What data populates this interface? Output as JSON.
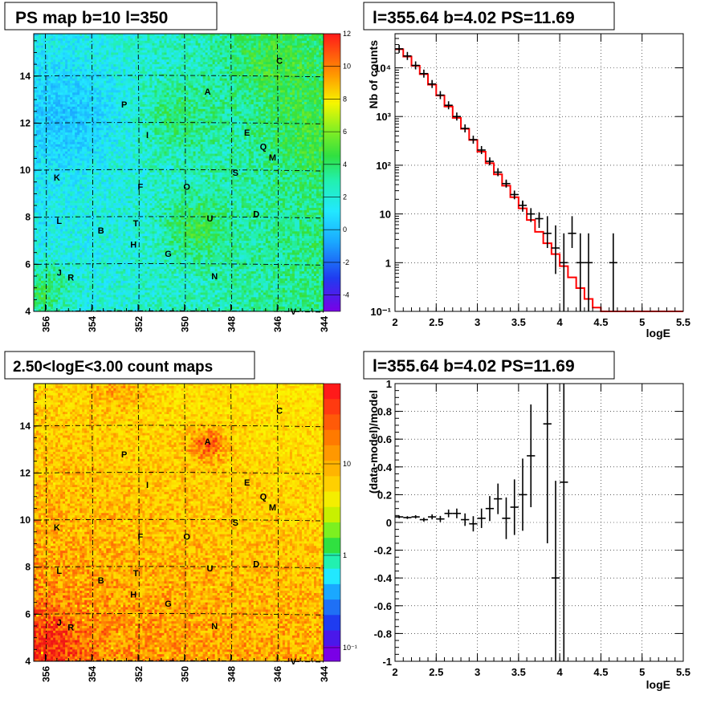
{
  "panels": {
    "tl": {
      "title": "PS map b=10 l=350"
    },
    "bl": {
      "title": "2.50<logE<3.00 count maps"
    },
    "tr": {
      "title": "l=355.64 b=4.02 PS=11.69"
    },
    "br": {
      "title": "l=355.64 b=4.02 PS=11.69"
    }
  },
  "chart_data": [
    {
      "type": "heatmap",
      "title": "PS map b=10 l=350",
      "x_ticks": [
        "356",
        "354",
        "352",
        "350",
        "348",
        "346",
        "344"
      ],
      "y_ticks": [
        "4",
        "6",
        "8",
        "10",
        "12",
        "14"
      ],
      "xlim": [
        356.5,
        344
      ],
      "ylim": [
        4,
        15.8
      ],
      "colorbar": {
        "ticks": [
          "12",
          "10",
          "8",
          "6",
          "4",
          "2",
          "0",
          "-2",
          "-4"
        ],
        "range": [
          -5,
          12
        ]
      },
      "labels": [
        {
          "text": "C",
          "l": 345.9,
          "b": 14.65
        },
        {
          "text": "A",
          "l": 349.0,
          "b": 13.35
        },
        {
          "text": "P",
          "l": 352.6,
          "b": 12.8
        },
        {
          "text": "I",
          "l": 351.6,
          "b": 11.5
        },
        {
          "text": "E",
          "l": 347.3,
          "b": 11.6
        },
        {
          "text": "Q",
          "l": 346.6,
          "b": 11.0
        },
        {
          "text": "M",
          "l": 346.2,
          "b": 10.55
        },
        {
          "text": "K",
          "l": 355.5,
          "b": 9.7
        },
        {
          "text": "S",
          "l": 347.8,
          "b": 9.9
        },
        {
          "text": "F",
          "l": 351.9,
          "b": 9.3
        },
        {
          "text": "O",
          "l": 349.9,
          "b": 9.3
        },
        {
          "text": "L",
          "l": 355.4,
          "b": 7.85
        },
        {
          "text": "D",
          "l": 346.9,
          "b": 8.15
        },
        {
          "text": "U",
          "l": 348.9,
          "b": 7.95
        },
        {
          "text": "T",
          "l": 352.1,
          "b": 7.75
        },
        {
          "text": "B",
          "l": 353.6,
          "b": 7.45
        },
        {
          "text": "H",
          "l": 352.2,
          "b": 6.85
        },
        {
          "text": "G",
          "l": 350.7,
          "b": 6.45
        },
        {
          "text": "J",
          "l": 355.4,
          "b": 5.65
        },
        {
          "text": "R",
          "l": 354.9,
          "b": 5.45
        },
        {
          "text": "N",
          "l": 348.7,
          "b": 5.5
        },
        {
          "text": "V",
          "l": 345.3,
          "b": 4.0
        }
      ]
    },
    {
      "type": "heatmap",
      "title": "2.50<logE<3.00 count maps",
      "x_ticks": [
        "356",
        "354",
        "352",
        "350",
        "348",
        "346",
        "344"
      ],
      "y_ticks": [
        "4",
        "6",
        "8",
        "10",
        "12",
        "14"
      ],
      "xlim": [
        356.5,
        344
      ],
      "ylim": [
        4,
        15.8
      ],
      "colorbar": {
        "scale": "log",
        "ticks": [
          "10",
          "1",
          "10⁻¹"
        ]
      }
    },
    {
      "type": "line",
      "title": "l=355.64 b=4.02 PS=11.69",
      "xlabel": "logE",
      "ylabel": "Nb of counts",
      "xlim": [
        2,
        5.5
      ],
      "ylim_log10": [
        -1,
        4.7
      ],
      "x_ticks": [
        "2",
        "2.5",
        "3",
        "3.5",
        "4",
        "4.5",
        "5",
        "5.5"
      ],
      "y_ticks": [
        {
          "v": 4,
          "t": "10⁴"
        },
        {
          "v": 3,
          "t": "10³"
        },
        {
          "v": 2,
          "t": "10²"
        },
        {
          "v": 1,
          "t": "10"
        },
        {
          "v": 0,
          "t": "1"
        },
        {
          "v": -1,
          "t": "10⁻¹"
        }
      ],
      "grid": true,
      "model_color": "#ff0000",
      "model": [
        [
          2.0,
          2.1,
          24000
        ],
        [
          2.1,
          2.2,
          17000
        ],
        [
          2.2,
          2.3,
          11000
        ],
        [
          2.3,
          2.4,
          7400
        ],
        [
          2.4,
          2.5,
          4500
        ],
        [
          2.5,
          2.6,
          2700
        ],
        [
          2.6,
          2.7,
          1600
        ],
        [
          2.7,
          2.8,
          940
        ],
        [
          2.8,
          2.9,
          560
        ],
        [
          2.9,
          3.0,
          330
        ],
        [
          3.0,
          3.1,
          190
        ],
        [
          3.1,
          3.2,
          110
        ],
        [
          3.2,
          3.3,
          65
        ],
        [
          3.3,
          3.4,
          38
        ],
        [
          3.4,
          3.5,
          22
        ],
        [
          3.5,
          3.6,
          13
        ],
        [
          3.6,
          3.7,
          7.5
        ],
        [
          3.7,
          3.8,
          4.3
        ],
        [
          3.8,
          3.9,
          2.5
        ],
        [
          3.9,
          4.0,
          1.5
        ],
        [
          4.0,
          4.1,
          0.85
        ],
        [
          4.1,
          4.2,
          0.5
        ],
        [
          4.2,
          4.3,
          0.3
        ],
        [
          4.3,
          4.4,
          0.18
        ],
        [
          4.4,
          4.5,
          0.12
        ],
        [
          4.5,
          4.6,
          0.1
        ],
        [
          4.6,
          5.5,
          0.1
        ]
      ],
      "data": [
        [
          2.05,
          24500
        ],
        [
          2.15,
          17500
        ],
        [
          2.25,
          11200
        ],
        [
          2.35,
          7600
        ],
        [
          2.45,
          4650
        ],
        [
          2.55,
          2750
        ],
        [
          2.65,
          1700
        ],
        [
          2.75,
          1000
        ],
        [
          2.85,
          570
        ],
        [
          2.95,
          335
        ],
        [
          3.05,
          205
        ],
        [
          3.15,
          120
        ],
        [
          3.25,
          72
        ],
        [
          3.35,
          42
        ],
        [
          3.45,
          25
        ],
        [
          3.55,
          15
        ],
        [
          3.65,
          10
        ],
        [
          3.75,
          8
        ],
        [
          3.85,
          4
        ],
        [
          3.95,
          2
        ],
        [
          4.05,
          1
        ],
        [
          4.15,
          4
        ],
        [
          4.25,
          1
        ],
        [
          4.35,
          1
        ],
        [
          4.65,
          1
        ]
      ]
    },
    {
      "type": "scatter",
      "title": "l=355.64 b=4.02 PS=11.69",
      "xlabel": "logE",
      "ylabel": "(data-model)/model",
      "xlim": [
        2,
        5.5
      ],
      "ylim": [
        -1,
        1
      ],
      "x_ticks": [
        "2",
        "2.5",
        "3",
        "3.5",
        "4",
        "4.5",
        "5",
        "5.5"
      ],
      "y_ticks": [
        "1",
        "0.8",
        "0.6",
        "0.4",
        "0.2",
        "0",
        "-0.2",
        "-0.4",
        "-0.6",
        "-0.8",
        "-1"
      ],
      "grid": true,
      "points": [
        [
          2.05,
          0.04,
          0.01
        ],
        [
          2.15,
          0.035,
          0.01
        ],
        [
          2.25,
          0.04,
          0.012
        ],
        [
          2.35,
          0.02,
          0.014
        ],
        [
          2.45,
          0.04,
          0.018
        ],
        [
          2.55,
          0.025,
          0.022
        ],
        [
          2.65,
          0.065,
          0.028
        ],
        [
          2.75,
          0.065,
          0.035
        ],
        [
          2.85,
          0.02,
          0.045
        ],
        [
          2.95,
          -0.01,
          0.055
        ],
        [
          3.05,
          0.03,
          0.07
        ],
        [
          3.15,
          0.1,
          0.09
        ],
        [
          3.25,
          0.17,
          0.11
        ],
        [
          3.35,
          0.03,
          0.15
        ],
        [
          3.45,
          0.11,
          0.2
        ],
        [
          3.55,
          0.2,
          0.26
        ],
        [
          3.65,
          0.48,
          0.37
        ],
        [
          3.85,
          0.71,
          0.86
        ],
        [
          3.95,
          -0.4,
          0.7
        ],
        [
          4.05,
          0.29,
          1.6
        ]
      ]
    }
  ]
}
